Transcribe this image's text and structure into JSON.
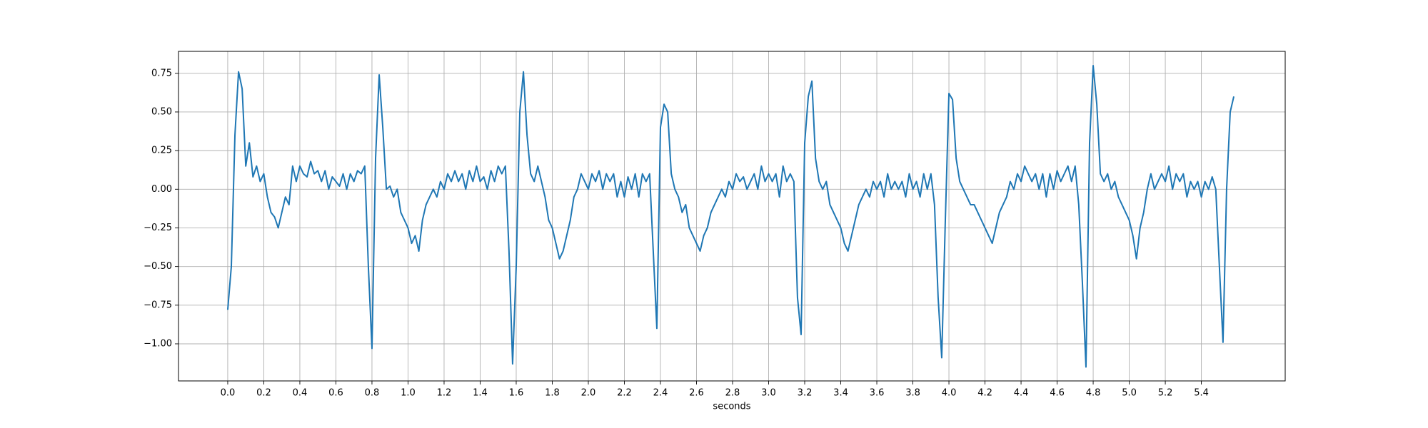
{
  "chart_data": {
    "type": "line",
    "xlabel": "seconds",
    "color": "#1f77b4",
    "grid": true,
    "xlim": [
      -0.273,
      5.865
    ],
    "ylim": [
      -1.24,
      0.892
    ],
    "xticks": [
      {
        "value": 0,
        "label": "0.0"
      },
      0.2,
      0.4,
      0.6,
      0.8,
      {
        "value": 1,
        "label": "1.0"
      },
      1.2,
      1.4,
      1.6,
      1.8,
      {
        "value": 2,
        "label": "2.0"
      },
      2.2,
      2.4,
      2.6,
      2.8,
      {
        "value": 3,
        "label": "3.0"
      },
      3.2,
      3.4,
      3.6,
      3.8,
      {
        "value": 4,
        "label": "4.0"
      },
      4.2,
      4.4,
      4.6,
      4.8,
      {
        "value": 5,
        "label": "5.0"
      },
      5.2,
      5.4
    ],
    "yticks": [
      {
        "value": -1,
        "label": "−1.00"
      },
      {
        "value": -0.75,
        "label": "−0.75"
      },
      {
        "value": -0.5,
        "label": "−0.50"
      },
      {
        "value": -0.25,
        "label": "−0.25"
      },
      {
        "value": 0,
        "label": "0.00"
      },
      {
        "value": 0.25,
        "label": "0.25"
      },
      {
        "value": 0.5,
        "label": "0.50"
      },
      {
        "value": 0.75,
        "label": "0.75"
      }
    ],
    "x": [
      0,
      0.02,
      0.04,
      0.06,
      0.08,
      0.1,
      0.12,
      0.14,
      0.16,
      0.18,
      0.2,
      0.22,
      0.24,
      0.26,
      0.28,
      0.3,
      0.32,
      0.34,
      0.36,
      0.38,
      0.4,
      0.42,
      0.44,
      0.46,
      0.48,
      0.5,
      0.52,
      0.54,
      0.56,
      0.58,
      0.6,
      0.62,
      0.64,
      0.66,
      0.68,
      0.7,
      0.72,
      0.74,
      0.76,
      0.78,
      0.8,
      0.82,
      0.84,
      0.86,
      0.88,
      0.9,
      0.92,
      0.94,
      0.96,
      0.98,
      1,
      1.02,
      1.04,
      1.06,
      1.08,
      1.1,
      1.12,
      1.14,
      1.16,
      1.18,
      1.2,
      1.22,
      1.24,
      1.26,
      1.28,
      1.3,
      1.32,
      1.34,
      1.36,
      1.38,
      1.4,
      1.42,
      1.44,
      1.46,
      1.48,
      1.5,
      1.52,
      1.54,
      1.56,
      1.58,
      1.6,
      1.62,
      1.64,
      1.66,
      1.68,
      1.7,
      1.72,
      1.74,
      1.76,
      1.78,
      1.8,
      1.82,
      1.84,
      1.86,
      1.88,
      1.9,
      1.92,
      1.94,
      1.96,
      1.98,
      2,
      2.02,
      2.04,
      2.06,
      2.08,
      2.1,
      2.12,
      2.14,
      2.16,
      2.18,
      2.2,
      2.22,
      2.24,
      2.26,
      2.28,
      2.3,
      2.32,
      2.34,
      2.36,
      2.38,
      2.4,
      2.42,
      2.44,
      2.46,
      2.48,
      2.5,
      2.52,
      2.54,
      2.56,
      2.58,
      2.6,
      2.62,
      2.64,
      2.66,
      2.68,
      2.7,
      2.72,
      2.74,
      2.76,
      2.78,
      2.8,
      2.82,
      2.84,
      2.86,
      2.88,
      2.9,
      2.92,
      2.94,
      2.96,
      2.98,
      3,
      3.02,
      3.04,
      3.06,
      3.08,
      3.1,
      3.12,
      3.14,
      3.16,
      3.18,
      3.2,
      3.22,
      3.24,
      3.26,
      3.28,
      3.3,
      3.32,
      3.34,
      3.36,
      3.38,
      3.4,
      3.42,
      3.44,
      3.46,
      3.48,
      3.5,
      3.52,
      3.54,
      3.56,
      3.58,
      3.6,
      3.62,
      3.64,
      3.66,
      3.68,
      3.7,
      3.72,
      3.74,
      3.76,
      3.78,
      3.8,
      3.82,
      3.84,
      3.86,
      3.88,
      3.9,
      3.92,
      3.94,
      3.96,
      3.98,
      4,
      4.02,
      4.04,
      4.06,
      4.08,
      4.1,
      4.12,
      4.14,
      4.16,
      4.18,
      4.2,
      4.22,
      4.24,
      4.26,
      4.28,
      4.3,
      4.32,
      4.34,
      4.36,
      4.38,
      4.4,
      4.42,
      4.44,
      4.46,
      4.48,
      4.5,
      4.52,
      4.54,
      4.56,
      4.58,
      4.6,
      4.62,
      4.64,
      4.66,
      4.68,
      4.7,
      4.72,
      4.74,
      4.76,
      4.78,
      4.8,
      4.82,
      4.84,
      4.86,
      4.88,
      4.9,
      4.92,
      4.94,
      4.96,
      4.98,
      5,
      5.02,
      5.04,
      5.06,
      5.08,
      5.1,
      5.12,
      5.14,
      5.16,
      5.18,
      5.2,
      5.22,
      5.24,
      5.26,
      5.28,
      5.3,
      5.32,
      5.34,
      5.36,
      5.38,
      5.4,
      5.42,
      5.44,
      5.46,
      5.48,
      5.5,
      5.52,
      5.54,
      5.56,
      5.58
    ],
    "values": [
      -0.78,
      -0.5,
      0.35,
      0.76,
      0.65,
      0.15,
      0.3,
      0.08,
      0.15,
      0.05,
      0.1,
      -0.05,
      -0.15,
      -0.18,
      -0.25,
      -0.15,
      -0.05,
      -0.1,
      0.15,
      0.05,
      0.15,
      0.1,
      0.08,
      0.18,
      0.1,
      0.12,
      0.05,
      0.12,
      0,
      0.08,
      0.05,
      0.02,
      0.1,
      0,
      0.1,
      0.05,
      0.12,
      0.1,
      0.15,
      -0.5,
      -1.03,
      0.2,
      0.74,
      0.4,
      0,
      0.02,
      -0.05,
      0,
      -0.15,
      -0.2,
      -0.25,
      -0.35,
      -0.3,
      -0.4,
      -0.2,
      -0.1,
      -0.05,
      0,
      -0.05,
      0.05,
      0,
      0.1,
      0.05,
      0.12,
      0.05,
      0.1,
      0,
      0.12,
      0.05,
      0.15,
      0.05,
      0.08,
      0,
      0.12,
      0.05,
      0.15,
      0.1,
      0.15,
      -0.4,
      -1.13,
      -0.5,
      0.5,
      0.76,
      0.35,
      0.1,
      0.05,
      0.15,
      0.05,
      -0.05,
      -0.2,
      -0.25,
      -0.35,
      -0.45,
      -0.4,
      -0.3,
      -0.2,
      -0.05,
      0,
      0.1,
      0.05,
      0,
      0.1,
      0.05,
      0.12,
      0,
      0.1,
      0.05,
      0.1,
      -0.05,
      0.05,
      -0.05,
      0.08,
      0,
      0.1,
      -0.05,
      0.1,
      0.05,
      0.1,
      -0.4,
      -0.9,
      0.4,
      0.55,
      0.5,
      0.1,
      0,
      -0.05,
      -0.15,
      -0.1,
      -0.25,
      -0.3,
      -0.35,
      -0.4,
      -0.3,
      -0.25,
      -0.15,
      -0.1,
      -0.05,
      0,
      -0.05,
      0.05,
      0,
      0.1,
      0.05,
      0.08,
      0,
      0.05,
      0.1,
      0,
      0.15,
      0.05,
      0.1,
      0.05,
      0.1,
      -0.05,
      0.15,
      0.05,
      0.1,
      0.05,
      -0.7,
      -0.94,
      0.3,
      0.6,
      0.7,
      0.2,
      0.05,
      0,
      0.05,
      -0.1,
      -0.15,
      -0.2,
      -0.25,
      -0.35,
      -0.4,
      -0.3,
      -0.2,
      -0.1,
      -0.05,
      0,
      -0.05,
      0.05,
      0,
      0.05,
      -0.05,
      0.1,
      0,
      0.05,
      0,
      0.05,
      -0.05,
      0.1,
      0,
      0.05,
      -0.05,
      0.1,
      0,
      0.1,
      -0.1,
      -0.7,
      -1.09,
      -0.2,
      0.62,
      0.58,
      0.2,
      0.05,
      0,
      -0.05,
      -0.1,
      -0.1,
      -0.15,
      -0.2,
      -0.25,
      -0.3,
      -0.35,
      -0.25,
      -0.15,
      -0.1,
      -0.05,
      0.05,
      0,
      0.1,
      0.05,
      0.15,
      0.1,
      0.05,
      0.1,
      0,
      0.1,
      -0.05,
      0.1,
      0,
      0.12,
      0.05,
      0.1,
      0.15,
      0.05,
      0.15,
      -0.1,
      -0.6,
      -1.15,
      0.3,
      0.8,
      0.55,
      0.1,
      0.05,
      0.1,
      0,
      0.05,
      -0.05,
      -0.1,
      -0.15,
      -0.2,
      -0.3,
      -0.45,
      -0.25,
      -0.15,
      0,
      0.1,
      0,
      0.05,
      0.1,
      0.05,
      0.15,
      0,
      0.1,
      0.05,
      0.1,
      -0.05,
      0.05,
      0,
      0.05,
      -0.05,
      0.05,
      0,
      0.08,
      0,
      -0.5,
      -0.99,
      0,
      0.5,
      0.6
    ]
  }
}
